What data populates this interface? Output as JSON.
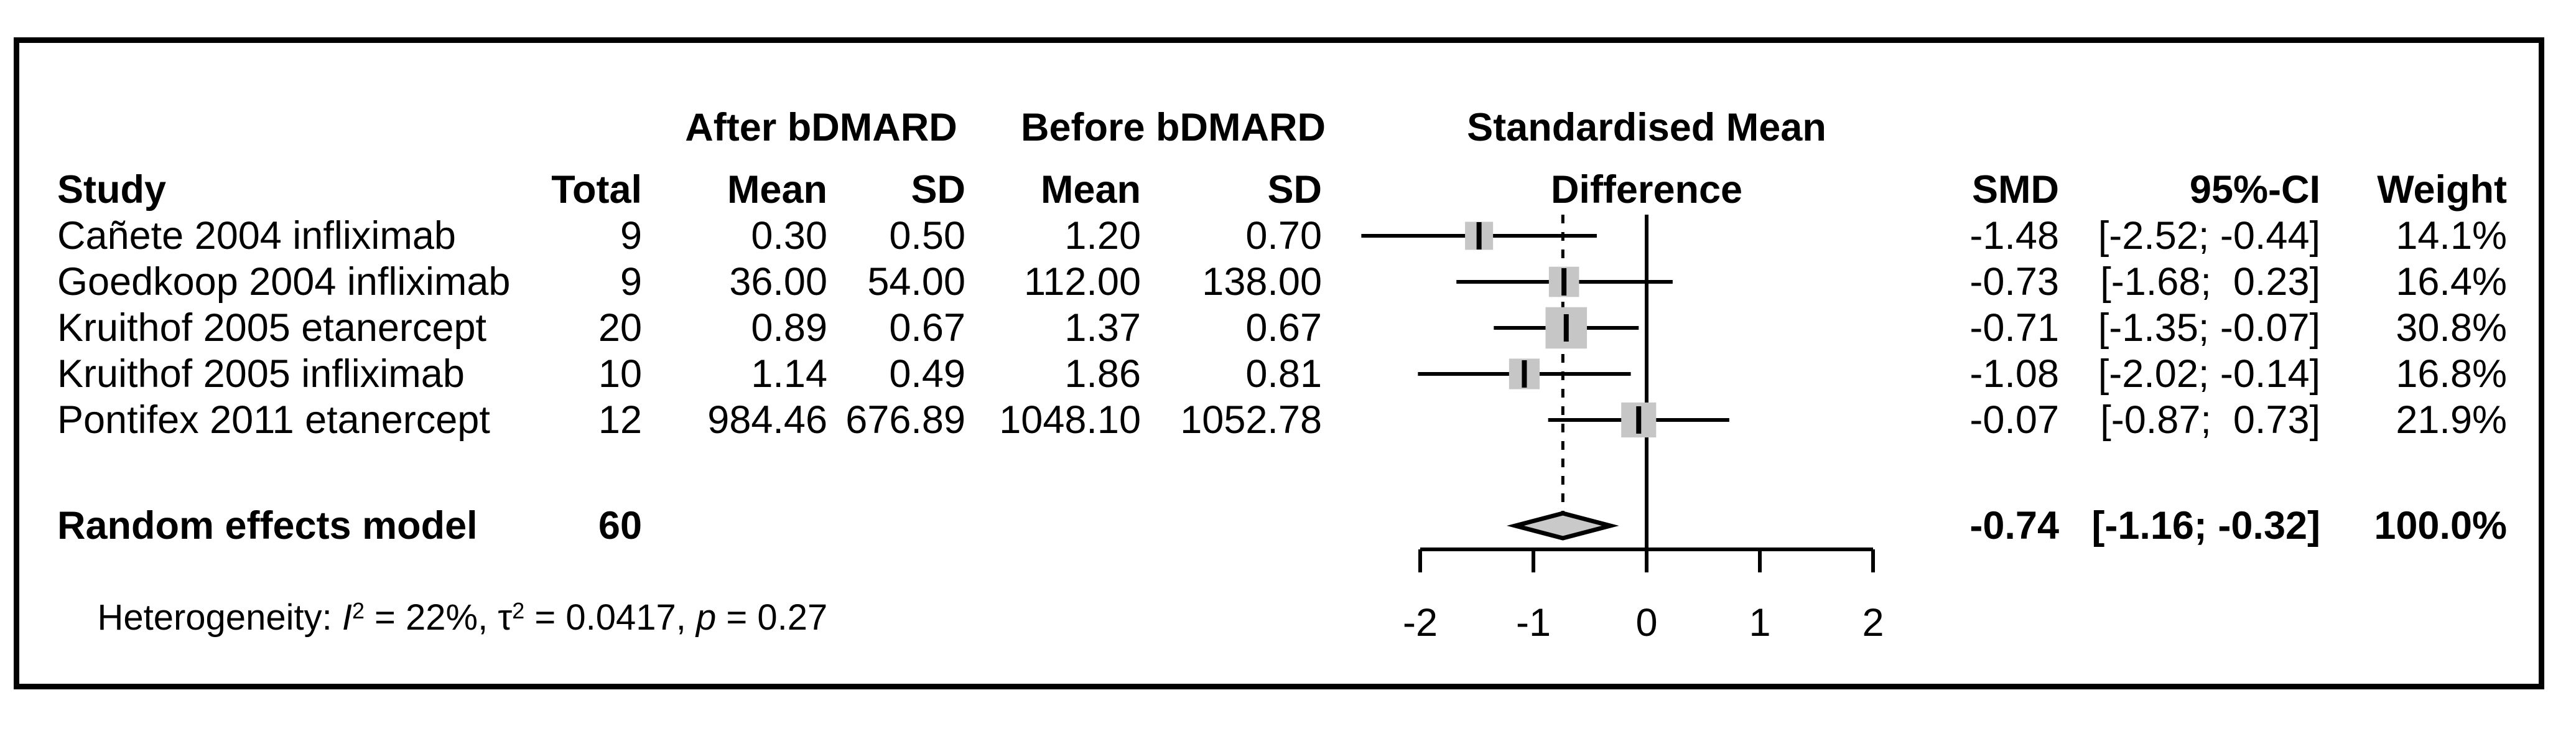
{
  "table": {
    "headers": {
      "study": "Study",
      "group_after": "After bDMARD",
      "group_before": "Before bDMARD",
      "plot_title_line1": "Standardised Mean",
      "plot_title_line2": "Difference",
      "total": "Total",
      "mean_after": "Mean",
      "sd_after": "SD",
      "mean_before": "Mean",
      "sd_before": "SD",
      "smd": "SMD",
      "ci": "95%-CI",
      "weight": "Weight"
    },
    "rows": [
      {
        "study": "Cañete 2004 infliximab",
        "total": "9",
        "mean_after": "0.30",
        "sd_after": "0.50",
        "mean_before": "1.20",
        "sd_before": "0.70",
        "smd": "-1.48",
        "ci": "[-2.52; -0.44]",
        "weight": "14.1%"
      },
      {
        "study": "Goedkoop 2004 infliximab",
        "total": "9",
        "mean_after": "36.00",
        "sd_after": "54.00",
        "mean_before": "112.00",
        "sd_before": "138.00",
        "smd": "-0.73",
        "ci": "[-1.68;  0.23]",
        "weight": "16.4%"
      },
      {
        "study": "Kruithof 2005 etanercept",
        "total": "20",
        "mean_after": "0.89",
        "sd_after": "0.67",
        "mean_before": "1.37",
        "sd_before": "0.67",
        "smd": "-0.71",
        "ci": "[-1.35; -0.07]",
        "weight": "30.8%"
      },
      {
        "study": "Kruithof 2005 infliximab",
        "total": "10",
        "mean_after": "1.14",
        "sd_after": "0.49",
        "mean_before": "1.86",
        "sd_before": "0.81",
        "smd": "-1.08",
        "ci": "[-2.02; -0.14]",
        "weight": "16.8%"
      },
      {
        "study": "Pontifex 2011 etanercept",
        "total": "12",
        "mean_after": "984.46",
        "sd_after": "676.89",
        "mean_before": "1048.10",
        "sd_before": "1052.78",
        "smd": "-0.07",
        "ci": "[-0.87;  0.73]",
        "weight": "21.9%"
      }
    ],
    "summary": {
      "label": "Random effects model",
      "total": "60",
      "smd": "-0.74",
      "ci": "[-1.16; -0.32]",
      "weight": "100.0%"
    },
    "heterogeneity": {
      "prefix": "Heterogeneity: ",
      "i_symbol": "I",
      "i_sup": "2",
      "i_value": " = 22%, ",
      "tau_symbol": "τ",
      "tau_sup": "2",
      "tau_value": " = 0.0417, ",
      "p_symbol": "p",
      "p_value": " = 0.27"
    }
  },
  "chart_data": {
    "type": "forest",
    "title": "Standardised Mean Difference",
    "xlim": [
      -2,
      2
    ],
    "x_ticks": [
      -2,
      -1,
      0,
      1,
      2
    ],
    "x_tick_labels": [
      "-2",
      "-1",
      "0",
      "1",
      "2"
    ],
    "zero_line_x": 0,
    "pooled_dashed_line_x": -0.74,
    "studies": [
      {
        "name": "Cañete 2004 infliximab",
        "smd": -1.48,
        "ci_low": -2.52,
        "ci_high": -0.44,
        "weight_pct": 14.1
      },
      {
        "name": "Goedkoop 2004 infliximab",
        "smd": -0.73,
        "ci_low": -1.68,
        "ci_high": 0.23,
        "weight_pct": 16.4
      },
      {
        "name": "Kruithof 2005 etanercept",
        "smd": -0.71,
        "ci_low": -1.35,
        "ci_high": -0.07,
        "weight_pct": 30.8
      },
      {
        "name": "Kruithof 2005 infliximab",
        "smd": -1.08,
        "ci_low": -2.02,
        "ci_high": -0.14,
        "weight_pct": 16.8
      },
      {
        "name": "Pontifex 2011 etanercept",
        "smd": -0.07,
        "ci_low": -0.87,
        "ci_high": 0.73,
        "weight_pct": 21.9
      }
    ],
    "pooled": {
      "name": "Random effects model",
      "smd": -0.74,
      "ci_low": -1.16,
      "ci_high": -0.32,
      "weight_pct": 100.0
    },
    "colors": {
      "square_fill": "#c6c6c6",
      "diamond_fill": "#c9c9c9",
      "line": "#000000"
    }
  }
}
